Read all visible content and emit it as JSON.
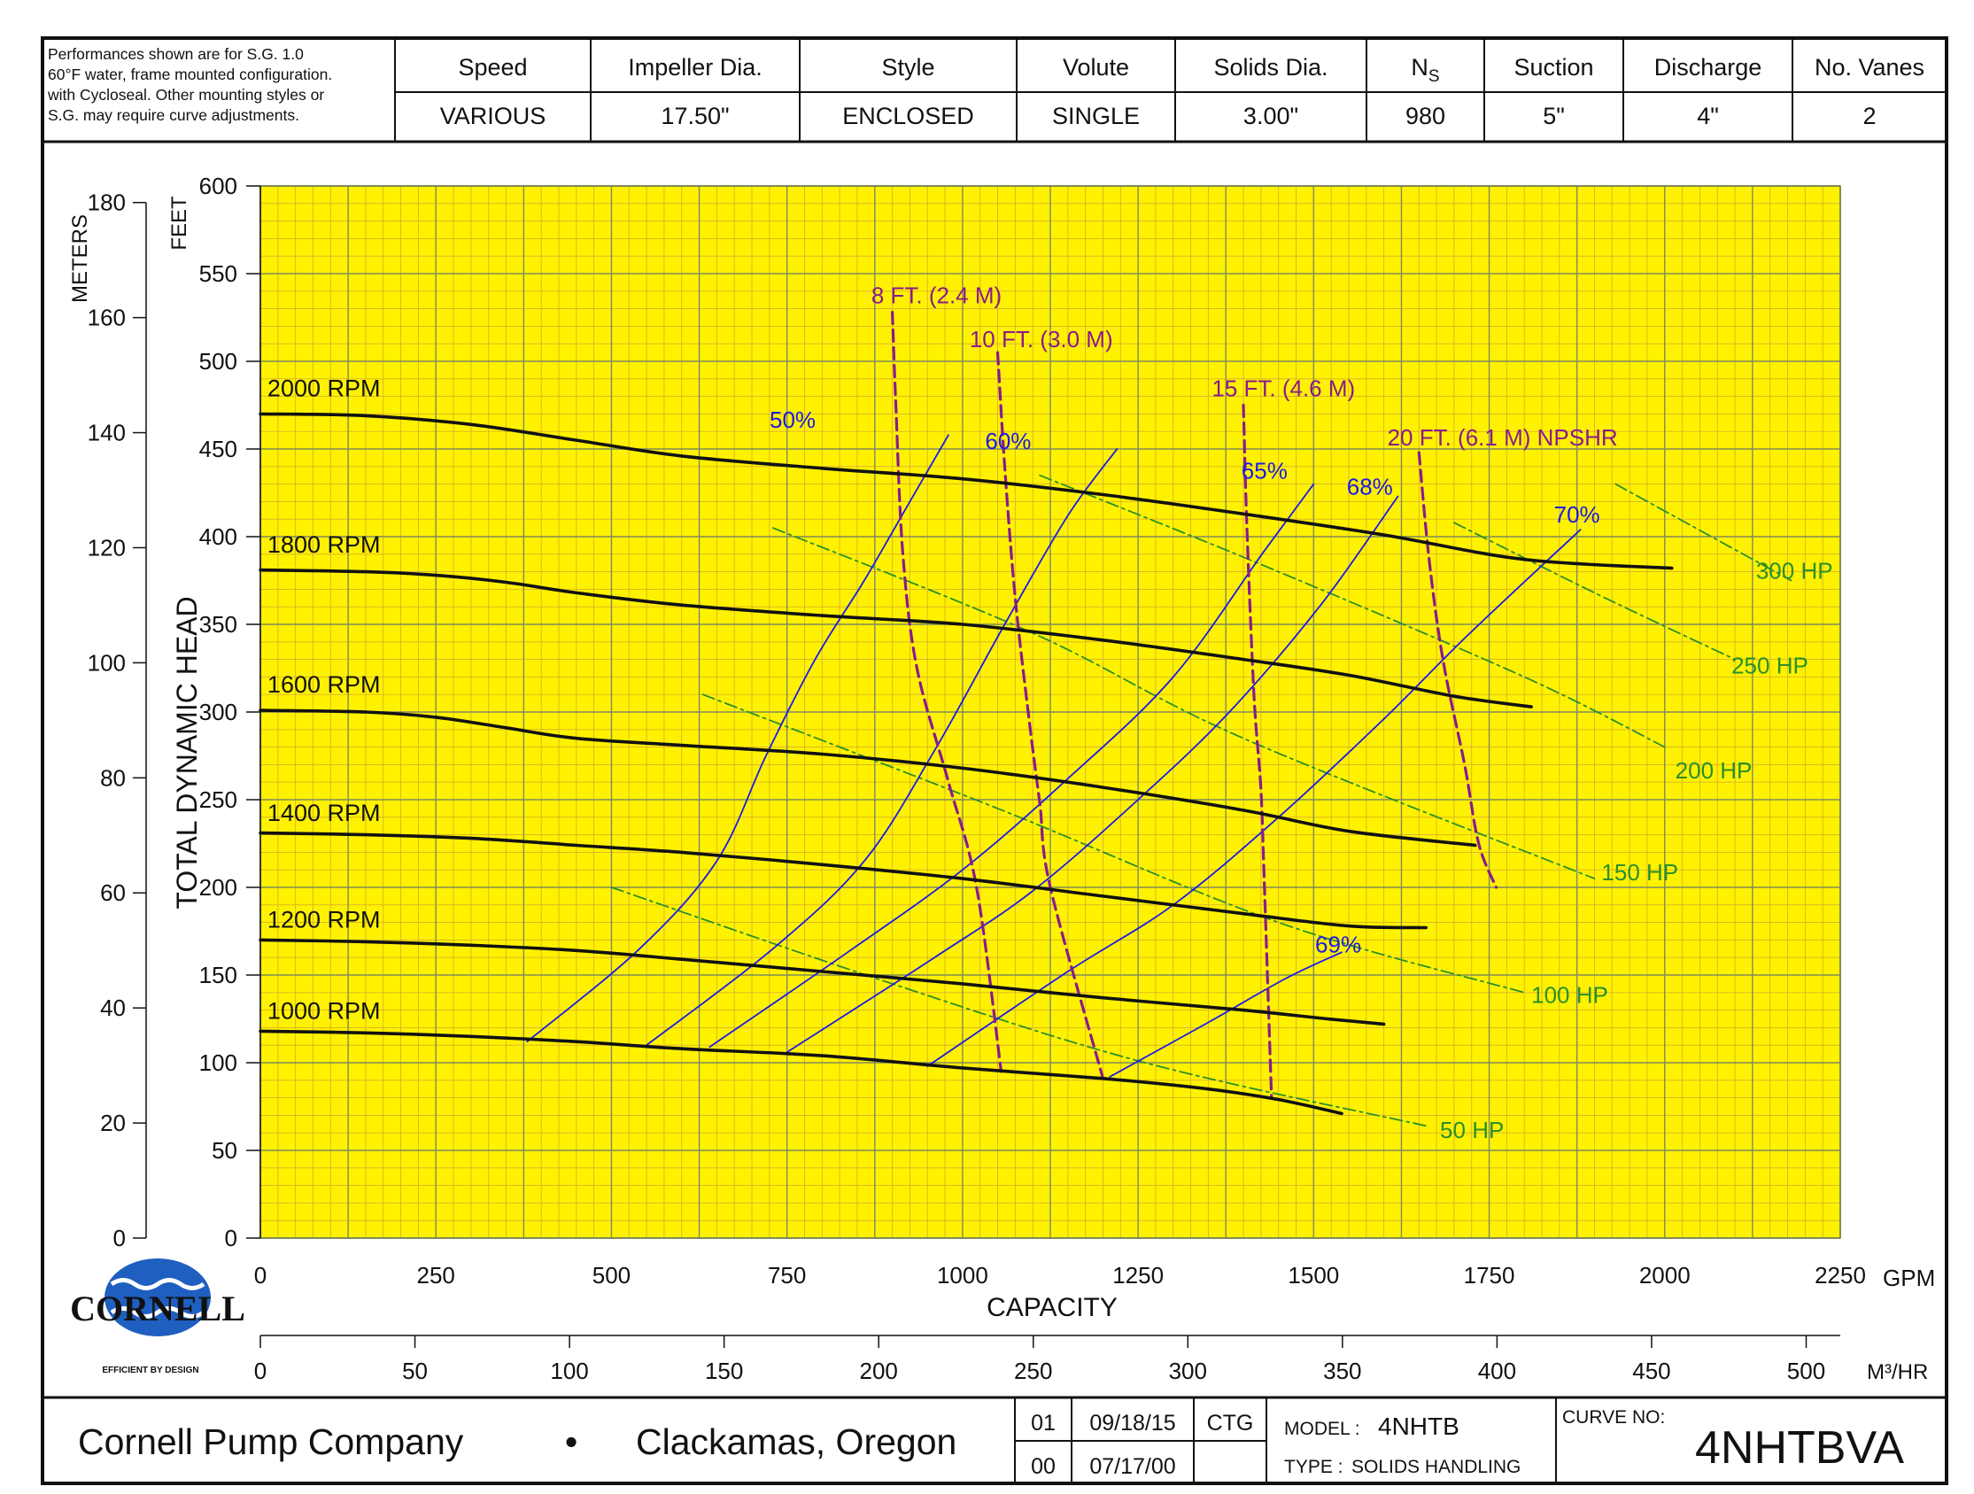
{
  "header": {
    "note_lines": [
      "Performances shown are for S.G. 1.0",
      "60°F water, frame mounted configuration.",
      "with Cycloseal. Other mounting styles or",
      "S.G. may require curve adjustments."
    ],
    "columns": [
      {
        "label": "Speed",
        "value": "VARIOUS"
      },
      {
        "label": "Impeller Dia.",
        "value": "17.50\""
      },
      {
        "label": "Style",
        "value": "ENCLOSED"
      },
      {
        "label": "Volute",
        "value": "SINGLE"
      },
      {
        "label": "Solids Dia.",
        "value": "3.00\""
      },
      {
        "label": "N",
        "label_sub": "S",
        "value": "980"
      },
      {
        "label": "Suction",
        "value": "5\""
      },
      {
        "label": "Discharge",
        "value": "4\""
      },
      {
        "label": "No. Vanes",
        "value": "2"
      }
    ]
  },
  "chart_data": {
    "type": "line",
    "x_unit": "GPM",
    "x_unit_secondary": "M³/HR",
    "xlabel": "CAPACITY",
    "ylabel": "TOTAL DYNAMIC HEAD",
    "ylabel_feet": "FEET",
    "ylabel_meters": "METERS",
    "xlim": [
      0,
      2250
    ],
    "ylim": [
      0,
      600
    ],
    "x_ticks": [
      "0",
      "250",
      "500",
      "750",
      "1000",
      "1250",
      "1500",
      "1750",
      "2000",
      "2250"
    ],
    "x_ticks_secondary": [
      "0",
      "50",
      "100",
      "150",
      "200",
      "250",
      "300",
      "350",
      "400",
      "450",
      "500"
    ],
    "y_ticks_feet": [
      "0",
      "50",
      "100",
      "150",
      "200",
      "250",
      "300",
      "350",
      "400",
      "450",
      "500",
      "550",
      "600"
    ],
    "y_ticks_meters": [
      "0",
      "20",
      "40",
      "60",
      "80",
      "100",
      "120",
      "140",
      "160",
      "180"
    ],
    "grid": true,
    "speed_curves": [
      {
        "name": "2000 RPM",
        "points": [
          [
            0,
            470
          ],
          [
            150,
            469
          ],
          [
            300,
            464
          ],
          [
            450,
            455
          ],
          [
            600,
            446
          ],
          [
            800,
            439
          ],
          [
            1000,
            433
          ],
          [
            1200,
            424
          ],
          [
            1400,
            413
          ],
          [
            1600,
            401
          ],
          [
            1800,
            387
          ],
          [
            2010,
            382
          ]
        ]
      },
      {
        "name": "1800 RPM",
        "points": [
          [
            0,
            381
          ],
          [
            150,
            380
          ],
          [
            250,
            378
          ],
          [
            350,
            374
          ],
          [
            450,
            368
          ],
          [
            600,
            361
          ],
          [
            800,
            355
          ],
          [
            1000,
            350
          ],
          [
            1200,
            341
          ],
          [
            1400,
            330
          ],
          [
            1550,
            321
          ],
          [
            1700,
            309
          ],
          [
            1810,
            303
          ]
        ]
      },
      {
        "name": "1600 RPM",
        "points": [
          [
            0,
            301
          ],
          [
            150,
            300
          ],
          [
            250,
            297
          ],
          [
            350,
            291
          ],
          [
            450,
            285
          ],
          [
            600,
            281
          ],
          [
            800,
            276
          ],
          [
            1000,
            268
          ],
          [
            1200,
            257
          ],
          [
            1400,
            244
          ],
          [
            1550,
            232
          ],
          [
            1730,
            224
          ]
        ]
      },
      {
        "name": "1400 RPM",
        "points": [
          [
            0,
            231
          ],
          [
            150,
            230
          ],
          [
            300,
            228
          ],
          [
            450,
            224
          ],
          [
            600,
            220
          ],
          [
            800,
            213
          ],
          [
            1000,
            205
          ],
          [
            1200,
            195
          ],
          [
            1400,
            185
          ],
          [
            1550,
            178
          ],
          [
            1660,
            177
          ]
        ]
      },
      {
        "name": "1200 RPM",
        "points": [
          [
            0,
            170
          ],
          [
            150,
            169
          ],
          [
            300,
            167
          ],
          [
            450,
            164
          ],
          [
            600,
            159
          ],
          [
            800,
            152
          ],
          [
            1000,
            145
          ],
          [
            1200,
            137
          ],
          [
            1400,
            130
          ],
          [
            1520,
            125
          ],
          [
            1600,
            122
          ]
        ]
      },
      {
        "name": "1000 RPM",
        "points": [
          [
            0,
            118
          ],
          [
            150,
            117
          ],
          [
            300,
            115
          ],
          [
            450,
            112
          ],
          [
            600,
            108
          ],
          [
            800,
            104
          ],
          [
            1000,
            97
          ],
          [
            1200,
            91
          ],
          [
            1350,
            85
          ],
          [
            1450,
            79
          ],
          [
            1540,
            71
          ]
        ]
      }
    ],
    "efficiency_curves": [
      {
        "name": "50%",
        "points": [
          [
            380,
            112
          ],
          [
            540,
            165
          ],
          [
            650,
            215
          ],
          [
            720,
            275
          ],
          [
            790,
            330
          ],
          [
            860,
            375
          ],
          [
            925,
            420
          ],
          [
            980,
            458
          ]
        ]
      },
      {
        "name": "60%",
        "points": [
          [
            550,
            110
          ],
          [
            730,
            165
          ],
          [
            860,
            215
          ],
          [
            960,
            278
          ],
          [
            1060,
            350
          ],
          [
            1150,
            412
          ],
          [
            1220,
            450
          ]
        ]
      },
      {
        "name": "65%",
        "points": [
          [
            640,
            109
          ],
          [
            840,
            164
          ],
          [
            1000,
            210
          ],
          [
            1150,
            262
          ],
          [
            1300,
            320
          ],
          [
            1430,
            392
          ],
          [
            1500,
            430
          ]
        ]
      },
      {
        "name": "68%",
        "points": [
          [
            750,
            106
          ],
          [
            960,
            160
          ],
          [
            1100,
            198
          ],
          [
            1250,
            250
          ],
          [
            1380,
            300
          ],
          [
            1510,
            361
          ],
          [
            1620,
            423
          ]
        ]
      },
      {
        "name": "70%",
        "points": [
          [
            950,
            98
          ],
          [
            1150,
            152
          ],
          [
            1300,
            190
          ],
          [
            1450,
            240
          ],
          [
            1600,
            296
          ],
          [
            1720,
            344
          ],
          [
            1880,
            404
          ]
        ]
      },
      {
        "name": "69%",
        "points": [
          [
            1210,
            92
          ],
          [
            1350,
            123
          ],
          [
            1460,
            148
          ],
          [
            1540,
            163
          ]
        ]
      }
    ],
    "npshr_curves": [
      {
        "name": "8 FT. (2.4 M)",
        "points": [
          [
            900,
            528
          ],
          [
            905,
            475
          ],
          [
            915,
            390
          ],
          [
            935,
            325
          ],
          [
            980,
            260
          ],
          [
            1020,
            200
          ],
          [
            1055,
            95
          ]
        ]
      },
      {
        "name": "10 FT. (3.0 M)",
        "points": [
          [
            1050,
            505
          ],
          [
            1060,
            440
          ],
          [
            1075,
            365
          ],
          [
            1095,
            295
          ],
          [
            1110,
            248
          ],
          [
            1125,
            200
          ],
          [
            1200,
            91
          ]
        ]
      },
      {
        "name": "15 FT. (4.6 M)",
        "points": [
          [
            1400,
            475
          ],
          [
            1405,
            405
          ],
          [
            1415,
            310
          ],
          [
            1425,
            255
          ],
          [
            1430,
            200
          ],
          [
            1440,
            80
          ]
        ]
      },
      {
        "name": "20 FT. (6.1 M) NPSHR",
        "points": [
          [
            1650,
            448
          ],
          [
            1665,
            385
          ],
          [
            1685,
            328
          ],
          [
            1715,
            270
          ],
          [
            1735,
            225
          ],
          [
            1760,
            200
          ]
        ]
      }
    ],
    "power_curves": [
      {
        "name": "50 HP",
        "points": [
          [
            500,
            200
          ],
          [
            900,
            145
          ],
          [
            1260,
            100
          ],
          [
            1660,
            64
          ]
        ]
      },
      {
        "name": "100 HP",
        "points": [
          [
            630,
            310
          ],
          [
            1050,
            245
          ],
          [
            1450,
            180
          ],
          [
            1800,
            140
          ]
        ]
      },
      {
        "name": "150 HP",
        "points": [
          [
            730,
            405
          ],
          [
            1100,
            345
          ],
          [
            1400,
            285
          ],
          [
            1900,
            205
          ]
        ]
      },
      {
        "name": "200 HP",
        "points": [
          [
            1110,
            435
          ],
          [
            1420,
            385
          ],
          [
            1800,
            320
          ],
          [
            2000,
            280
          ]
        ]
      },
      {
        "name": "250 HP",
        "points": [
          [
            1700,
            408
          ],
          [
            1900,
            368
          ],
          [
            2100,
            330
          ]
        ]
      },
      {
        "name": "300 HP",
        "points": [
          [
            1930,
            430
          ],
          [
            2080,
            397
          ],
          [
            2180,
            375
          ]
        ]
      }
    ],
    "power_labels": [
      {
        "name": "50 HP",
        "x": 1680,
        "y": 57
      },
      {
        "name": "100 HP",
        "x": 1810,
        "y": 134
      },
      {
        "name": "150 HP",
        "x": 1910,
        "y": 204
      },
      {
        "name": "200 HP",
        "x": 2015,
        "y": 262
      },
      {
        "name": "250 HP",
        "x": 2095,
        "y": 322
      },
      {
        "name": "300 HP",
        "x": 2130,
        "y": 376
      }
    ],
    "efficiency_labels": [
      {
        "name": "50%",
        "x": 758,
        "y": 462
      },
      {
        "name": "60%",
        "x": 1065,
        "y": 450
      },
      {
        "name": "65%",
        "x": 1430,
        "y": 433
      },
      {
        "name": "68%",
        "x": 1580,
        "y": 424
      },
      {
        "name": "70%",
        "x": 1875,
        "y": 408
      },
      {
        "name": "69%",
        "x": 1535,
        "y": 163
      }
    ],
    "npshr_labels": [
      {
        "name": "8 FT. (2.4 M)",
        "x": 870,
        "y": 533
      },
      {
        "name": "10 FT. (3.0 M)",
        "x": 1010,
        "y": 508
      },
      {
        "name": "15 FT. (4.6 M)",
        "x": 1355,
        "y": 480
      },
      {
        "name": "20 FT. (6.1 M) NPSHR",
        "x": 1605,
        "y": 452
      }
    ],
    "speed_labels": [
      {
        "name": "2000 RPM",
        "x": 10,
        "y": 480
      },
      {
        "name": "1800 RPM",
        "x": 10,
        "y": 391
      },
      {
        "name": "1600 RPM",
        "x": 10,
        "y": 311
      },
      {
        "name": "1400 RPM",
        "x": 10,
        "y": 238
      },
      {
        "name": "1200 RPM",
        "x": 10,
        "y": 177
      },
      {
        "name": "1000 RPM",
        "x": 10,
        "y": 125
      }
    ],
    "colors": {
      "grid_bg": "#fff200",
      "grid_minor": "#d8b02a",
      "grid_major": "#7f8a5a",
      "speed": "#111111",
      "efficiency": "#1a1ae6",
      "npshr": "#8b1a8b",
      "power": "#2a8f2a"
    }
  },
  "logo": {
    "name": "CORNELL",
    "tagline": "EFFICIENT BY DESIGN"
  },
  "footer": {
    "company": "Cornell Pump Company",
    "bullet": "•",
    "location": "Clackamas, Oregon",
    "revisions": [
      {
        "rev": "01",
        "date": "09/18/15",
        "by": "CTG"
      },
      {
        "rev": "00",
        "date": "07/17/00",
        "by": ""
      }
    ],
    "model_label": "MODEL :",
    "model": "4NHTB",
    "type_label": "TYPE :",
    "type": "SOLIDS HANDLING",
    "curve_label": "CURVE NO:",
    "curve": "4NHTBVA"
  }
}
